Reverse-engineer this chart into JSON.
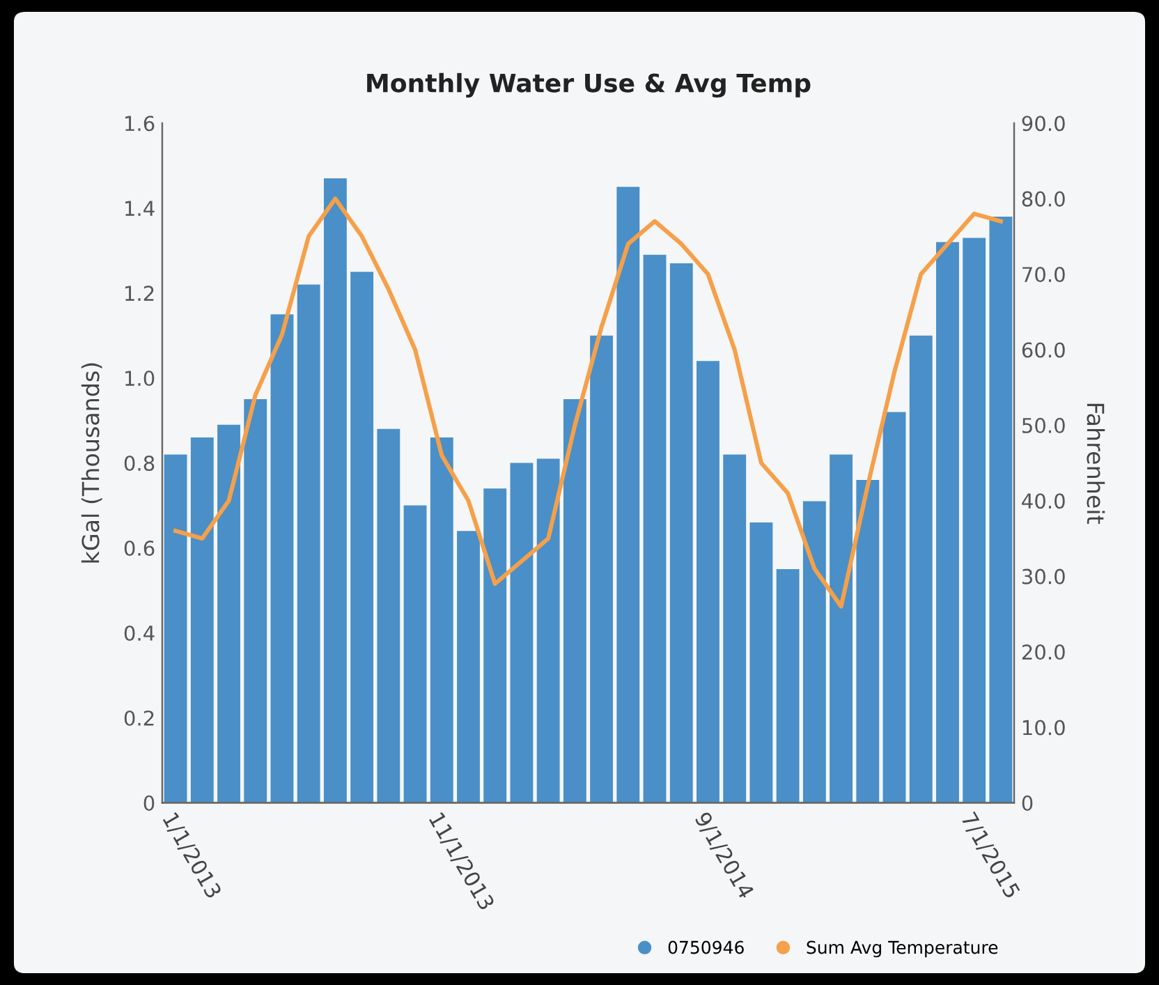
{
  "chart_data": {
    "type": "bar",
    "title": "Monthly Water Use & Avg Temp",
    "ylabel": "kGal (Thousands)",
    "y2label": "Fahrenheit",
    "categories": [
      "1/1/2013",
      null,
      null,
      null,
      null,
      null,
      null,
      null,
      null,
      null,
      "11/1/2013",
      null,
      null,
      null,
      null,
      null,
      null,
      null,
      null,
      null,
      "9/1/2014",
      null,
      null,
      null,
      null,
      null,
      null,
      null,
      null,
      null,
      "7/1/2015",
      null
    ],
    "series": [
      {
        "name": "0750946",
        "color": "#4a8fc7",
        "values": [
          0.82,
          0.86,
          0.89,
          0.95,
          1.15,
          1.22,
          1.47,
          1.25,
          0.88,
          0.7,
          0.86,
          0.64,
          0.74,
          0.8,
          0.81,
          0.95,
          1.1,
          1.45,
          1.29,
          1.27,
          1.04,
          0.82,
          0.66,
          0.55,
          0.71,
          0.82,
          0.76,
          0.92,
          1.1,
          1.32,
          1.33,
          1.38
        ]
      },
      {
        "name": "Sum Avg Temperature",
        "type": "line",
        "axis": "y2",
        "color": "#f5a04a",
        "values": [
          36,
          35,
          40,
          54,
          62,
          75,
          80,
          75,
          68,
          60,
          46,
          40,
          29,
          32,
          35,
          50,
          63,
          74,
          77,
          74,
          70,
          60,
          45,
          41,
          31,
          26,
          42,
          57,
          70,
          74,
          78,
          77
        ]
      }
    ],
    "ylim": [
      0,
      1.6
    ],
    "yticks": [
      0,
      0.2,
      0.4,
      0.6,
      0.8,
      {
        "value": 1.0,
        "label": "1.0"
      },
      1.2,
      1.4,
      1.6
    ],
    "y2lim": [
      0,
      90
    ],
    "y2ticks": [
      0,
      {
        "value": 10,
        "label": "10.0"
      },
      {
        "value": 20,
        "label": "20.0"
      },
      {
        "value": 30,
        "label": "30.0"
      },
      {
        "value": 40,
        "label": "40.0"
      },
      {
        "value": 50,
        "label": "50.0"
      },
      {
        "value": 60,
        "label": "60.0"
      },
      {
        "value": 70,
        "label": "70.0"
      },
      {
        "value": 80,
        "label": "80.0"
      },
      {
        "value": 90,
        "label": "90.0"
      }
    ],
    "legend": "bottom right",
    "grid": false
  }
}
